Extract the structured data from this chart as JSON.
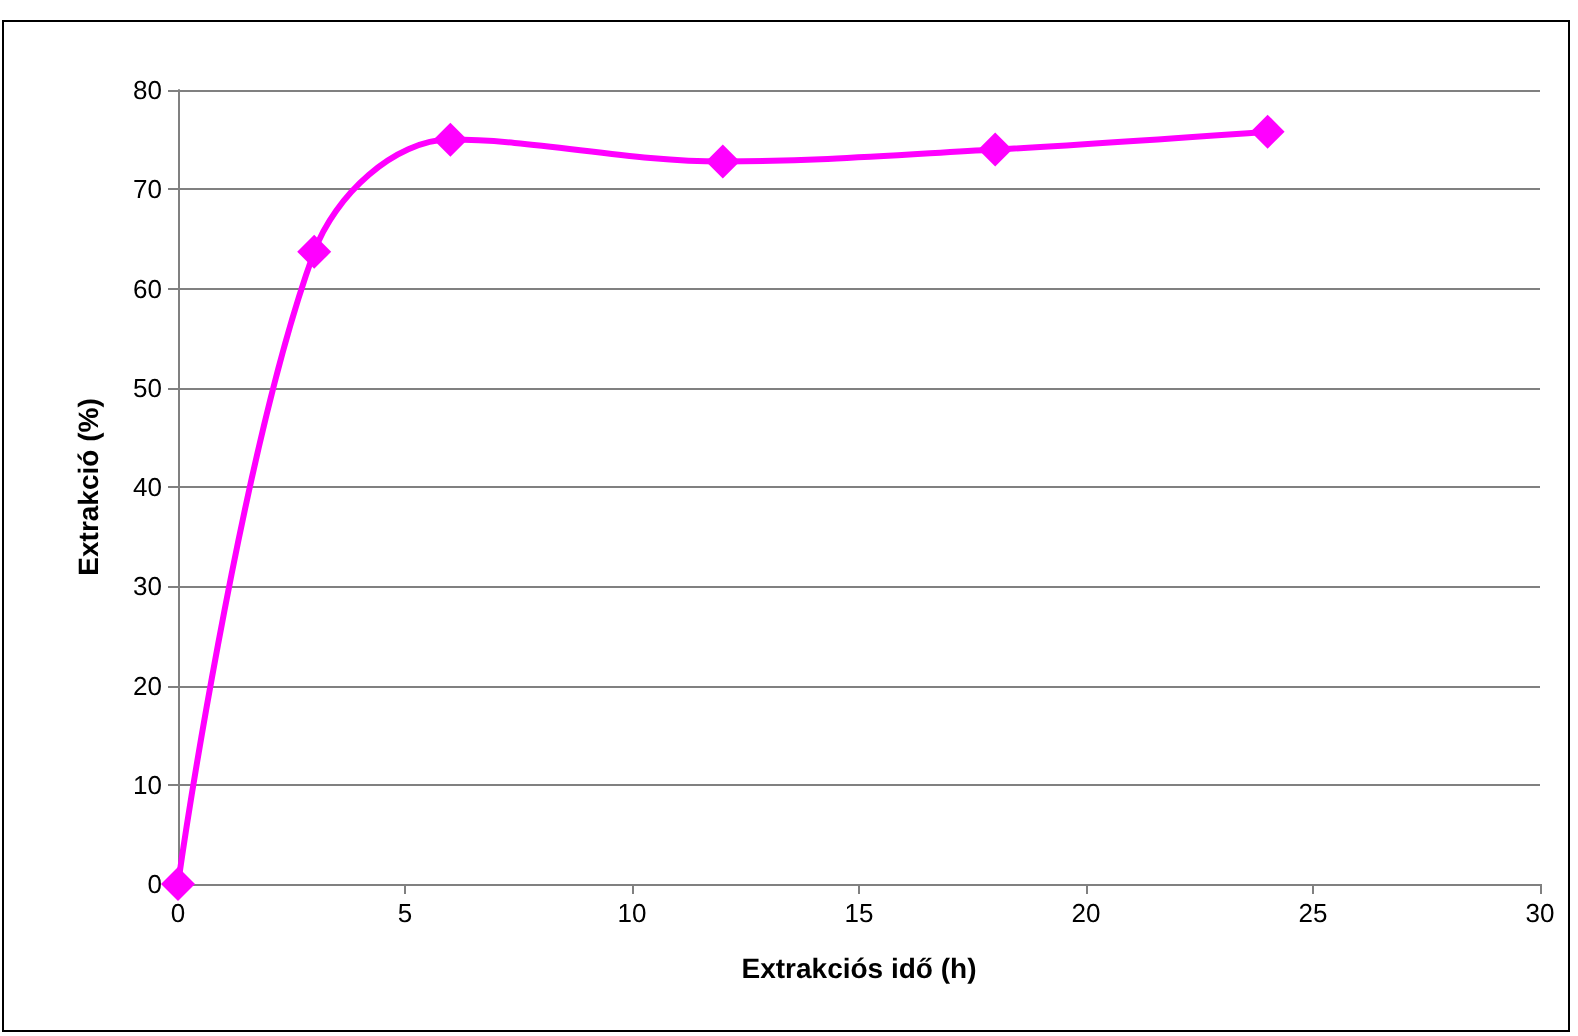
{
  "chart_data": {
    "type": "line",
    "xlabel": "Extrakciós idő (h)",
    "ylabel": "Extrakció (%)",
    "x": [
      0,
      3,
      6,
      12,
      18,
      24
    ],
    "series": [
      {
        "color": "#ff00ff",
        "values": [
          0,
          63.7,
          75,
          72.8,
          74,
          75.8
        ]
      }
    ],
    "xlim": [
      0,
      30
    ],
    "xticks": [
      0,
      5,
      10,
      15,
      20,
      25,
      30
    ],
    "ylim": [
      0,
      80
    ],
    "yticks": [
      0,
      10,
      20,
      30,
      40,
      50,
      60,
      70,
      80
    ],
    "grid": "y",
    "marker": "diamond",
    "line_style": "solid"
  }
}
